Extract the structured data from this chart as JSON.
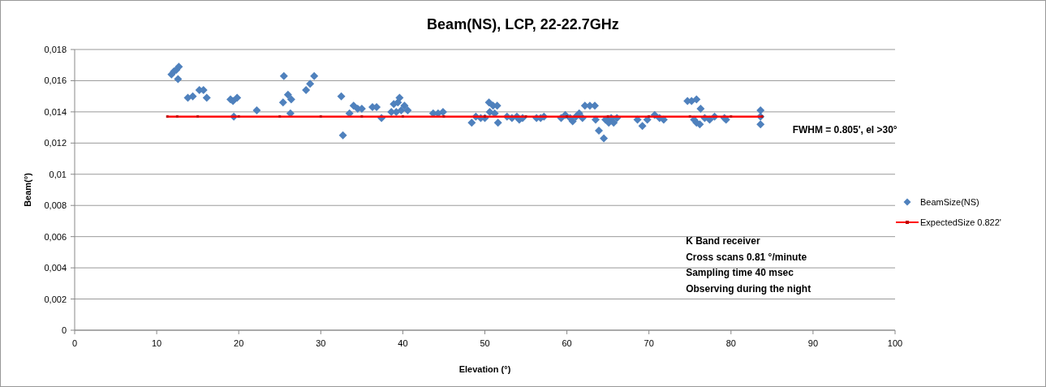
{
  "chart_data": {
    "type": "scatter",
    "title": "Beam(NS), LCP, 22-22.7GHz",
    "xlabel": "Elevation (°)",
    "ylabel": "Beam(°)",
    "xlim": [
      0,
      100
    ],
    "xticks": [
      0,
      10,
      20,
      30,
      40,
      50,
      60,
      70,
      80,
      90,
      100
    ],
    "ylim": [
      0,
      0.018
    ],
    "yticks": [
      {
        "value": 0,
        "label": "0"
      },
      {
        "value": 0.002,
        "label": "0,002"
      },
      {
        "value": 0.004,
        "label": "0,004"
      },
      {
        "value": 0.006,
        "label": "0,006"
      },
      {
        "value": 0.008,
        "label": "0,008"
      },
      {
        "value": 0.01,
        "label": "0,01"
      },
      {
        "value": 0.012,
        "label": "0,012"
      },
      {
        "value": 0.014,
        "label": "0,014"
      },
      {
        "value": 0.016,
        "label": "0,016"
      },
      {
        "value": 0.018,
        "label": "0,018"
      }
    ],
    "grid": "y",
    "legend": "right",
    "marker": "diamond",
    "series": [
      {
        "name": "BeamSize(NS)",
        "color": "#4f81bd",
        "x": [
          11.8,
          12.1,
          12.4,
          12.7,
          12.6,
          13.8,
          14.4,
          15.2,
          15.7,
          16.1,
          19.0,
          19.3,
          19.8,
          19.4,
          22.2,
          25.4,
          25.5,
          26.0,
          26.4,
          26.3,
          28.2,
          28.7,
          29.2,
          32.5,
          32.7,
          33.5,
          34.0,
          34.5,
          35.0,
          36.3,
          36.8,
          37.4,
          38.6,
          38.9,
          39.4,
          39.6,
          39.2,
          39.8,
          40.2,
          40.6,
          43.7,
          44.3,
          44.9,
          48.4,
          48.9,
          49.5,
          50.0,
          50.5,
          51.0,
          51.5,
          50.6,
          51.2,
          51.6,
          52.7,
          53.3,
          53.9,
          54.2,
          54.6,
          56.3,
          56.8,
          57.2,
          59.3,
          59.8,
          60.4,
          60.7,
          61.1,
          61.5,
          61.9,
          62.2,
          62.8,
          63.4,
          63.5,
          63.9,
          64.5,
          64.7,
          65.1,
          65.4,
          65.7,
          66.1,
          68.6,
          69.2,
          69.8,
          70.7,
          71.3,
          71.8,
          74.7,
          75.2,
          75.8,
          76.3,
          75.5,
          75.8,
          76.2,
          76.8,
          77.4,
          78.0,
          79.2,
          79.4,
          83.6,
          83.6,
          83.6
        ],
        "values": [
          0.0164,
          0.0166,
          0.0167,
          0.0169,
          0.0161,
          0.0149,
          0.015,
          0.0154,
          0.0154,
          0.0149,
          0.0148,
          0.0147,
          0.0149,
          0.0137,
          0.0141,
          0.0146,
          0.0163,
          0.0151,
          0.0148,
          0.0139,
          0.0154,
          0.0158,
          0.0163,
          0.015,
          0.0125,
          0.0139,
          0.0144,
          0.0142,
          0.0142,
          0.0143,
          0.0143,
          0.0136,
          0.014,
          0.0145,
          0.0146,
          0.0149,
          0.014,
          0.0141,
          0.0144,
          0.0141,
          0.0139,
          0.0139,
          0.014,
          0.0133,
          0.0137,
          0.0136,
          0.0136,
          0.0146,
          0.0144,
          0.0144,
          0.014,
          0.0139,
          0.0133,
          0.0137,
          0.0136,
          0.0137,
          0.0135,
          0.0136,
          0.0136,
          0.0136,
          0.0137,
          0.0136,
          0.0138,
          0.0136,
          0.0134,
          0.0137,
          0.0139,
          0.0136,
          0.0144,
          0.0144,
          0.0144,
          0.0135,
          0.0128,
          0.0123,
          0.0135,
          0.0133,
          0.0136,
          0.0133,
          0.0136,
          0.0135,
          0.0131,
          0.0135,
          0.0138,
          0.0136,
          0.0135,
          0.0147,
          0.0147,
          0.0148,
          0.0142,
          0.0135,
          0.0133,
          0.0132,
          0.0136,
          0.0135,
          0.0137,
          0.0136,
          0.0135,
          0.0141,
          0.0137,
          0.0132
        ]
      },
      {
        "name": "ExpectedSize 0.822'",
        "type": "line",
        "color": "#ff0000",
        "marker": "square",
        "x": [
          11.3,
          12.5,
          15,
          20,
          25,
          30,
          35,
          40,
          45,
          50,
          55,
          60,
          65,
          70,
          75,
          80,
          83.8
        ],
        "values": [
          0.0137,
          0.0137,
          0.0137,
          0.0137,
          0.0137,
          0.0137,
          0.0137,
          0.0137,
          0.0137,
          0.0137,
          0.0137,
          0.0137,
          0.0137,
          0.0137,
          0.0137,
          0.0137,
          0.0137
        ]
      }
    ],
    "annotations": [
      "FWHM = 0.805', el >30°",
      "K Band receiver\nCross scans 0.81  °/minute\nSampling time 40  msec\nObserving during the night"
    ]
  }
}
